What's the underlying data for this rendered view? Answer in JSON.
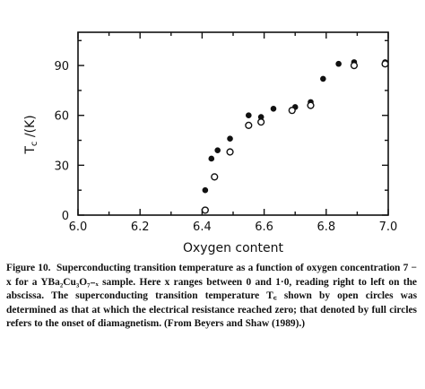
{
  "chart_data": {
    "type": "scatter",
    "title": "",
    "xlabel": "Oxygen content",
    "ylabel_main": "T",
    "ylabel_sub": "c",
    "ylabel_unit": " /(K)",
    "xlim": [
      6.0,
      7.0
    ],
    "ylim": [
      0,
      110
    ],
    "x_ticks": [
      6.0,
      6.1,
      6.2,
      6.3,
      6.4,
      6.5,
      6.6,
      6.7,
      6.8,
      6.9,
      7.0
    ],
    "x_tick_labels": [
      "6.0",
      "6.2",
      "6.4",
      "6.6",
      "6.8",
      "7.0"
    ],
    "x_tick_label_values": [
      6.0,
      6.2,
      6.4,
      6.6,
      6.8,
      7.0
    ],
    "y_ticks": [
      0,
      15,
      30,
      45,
      60,
      75,
      90,
      105
    ],
    "y_tick_labels": [
      "0",
      "30",
      "60",
      "90"
    ],
    "y_tick_label_values": [
      0,
      30,
      60,
      90
    ],
    "grid": false,
    "series": [
      {
        "marker": "filled",
        "points": [
          [
            6.41,
            15
          ],
          [
            6.43,
            34
          ],
          [
            6.45,
            39
          ],
          [
            6.49,
            46
          ],
          [
            6.55,
            60
          ],
          [
            6.59,
            59
          ],
          [
            6.63,
            64
          ],
          [
            6.7,
            65
          ],
          [
            6.75,
            68
          ],
          [
            6.79,
            82
          ],
          [
            6.84,
            91
          ],
          [
            6.89,
            92
          ],
          [
            6.99,
            92
          ]
        ]
      },
      {
        "marker": "open",
        "points": [
          [
            6.41,
            3
          ],
          [
            6.44,
            23
          ],
          [
            6.49,
            38
          ],
          [
            6.55,
            54
          ],
          [
            6.59,
            56
          ],
          [
            6.69,
            63
          ],
          [
            6.75,
            66
          ],
          [
            6.89,
            90
          ],
          [
            6.99,
            91
          ]
        ]
      }
    ]
  },
  "caption": {
    "label": "Figure 10.",
    "text": "Superconducting transition temperature as a function of oxygen concentration 7 − x for a YBa₂Cu₃O₇₋ₓ sample. Here x ranges between 0 and 1·0, reading right to left on the abscissa. The superconducting transition temperature T꜀ shown by open circles was determined as that at which the electrical resistance reached zero; that denoted by full circles refers to the onset of diamagnetism. (From Beyers and Shaw (1989).)"
  }
}
